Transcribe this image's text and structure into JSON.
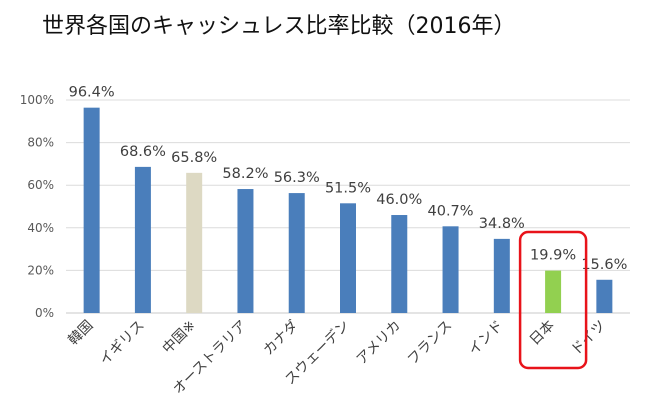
{
  "chart_data": {
    "type": "bar",
    "title": "世界各国のキャッシュレス比率比較（2016年）",
    "categories": [
      "韓国",
      "イギリス",
      "中国※",
      "オーストラリア",
      "カナダ",
      "スウェーデン",
      "アメリカ",
      "フランス",
      "インド",
      "日本",
      "ドイツ"
    ],
    "values": [
      96.4,
      68.6,
      65.8,
      58.2,
      56.3,
      51.5,
      46.0,
      40.7,
      34.8,
      19.9,
      15.6
    ],
    "value_labels": [
      "96.4%",
      "68.6%",
      "65.8%",
      "58.2%",
      "56.3%",
      "51.5%",
      "46.0%",
      "40.7%",
      "34.8%",
      "19.9%",
      "15.6%"
    ],
    "y_ticks": [
      0,
      20,
      40,
      60,
      80,
      100
    ],
    "y_tick_labels": [
      "0%",
      "20%",
      "40%",
      "60%",
      "80%",
      "100%"
    ],
    "ylim": [
      0,
      100
    ],
    "grid": true,
    "colors": {
      "default": "#4A7EBB",
      "中国※": "#DDD9C3",
      "日本": "#92D050"
    },
    "highlight": {
      "category": "日本",
      "outline_color": "#E8131A"
    }
  }
}
